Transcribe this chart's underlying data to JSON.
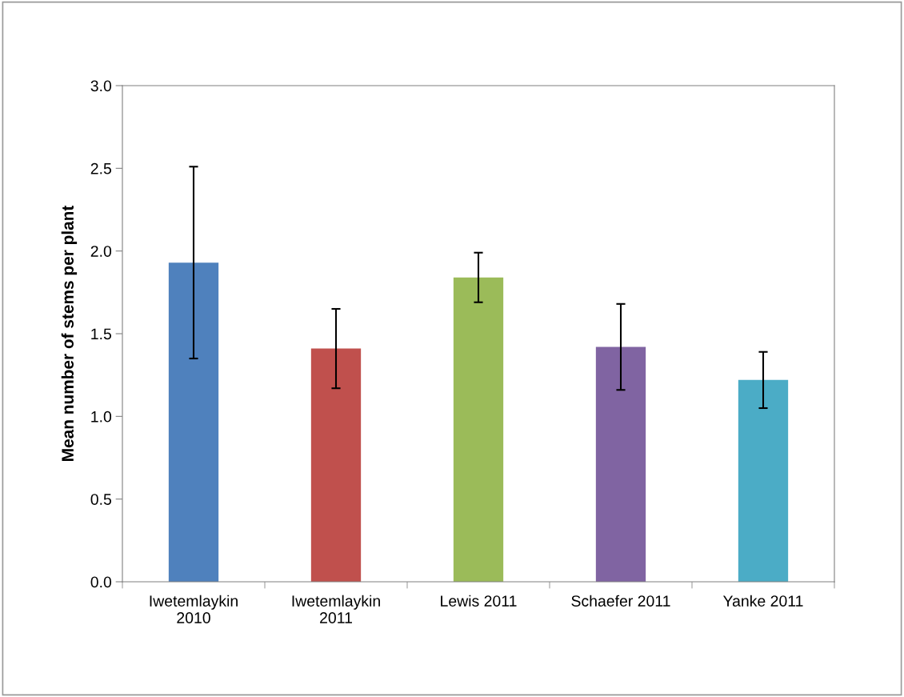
{
  "chart_data": {
    "type": "bar",
    "ylabel": "Mean number of stems per plant",
    "categories": [
      "Iwetemlaykin\n2010",
      "Iwetemlaykin\n2011",
      "Lewis 2011",
      "Schaefer 2011",
      "Yanke 2011"
    ],
    "values": [
      1.93,
      1.41,
      1.84,
      1.42,
      1.22
    ],
    "errors": [
      0.58,
      0.24,
      0.15,
      0.26,
      0.17
    ],
    "colors": [
      "#4f81bd",
      "#c0504d",
      "#9bbb59",
      "#8064a2",
      "#4bacc6"
    ],
    "ylim": [
      0,
      3.0
    ],
    "yticks": [
      {
        "value": 0,
        "label": "0.0"
      },
      {
        "value": 0.5,
        "label": "0.5"
      },
      {
        "value": 1.0,
        "label": "1.0"
      },
      {
        "value": 1.5,
        "label": "1.5"
      },
      {
        "value": 2.0,
        "label": "2.0"
      },
      {
        "value": 2.5,
        "label": "2.5"
      },
      {
        "value": 3.0,
        "label": "3.0"
      }
    ],
    "grid": false,
    "legend": false
  }
}
